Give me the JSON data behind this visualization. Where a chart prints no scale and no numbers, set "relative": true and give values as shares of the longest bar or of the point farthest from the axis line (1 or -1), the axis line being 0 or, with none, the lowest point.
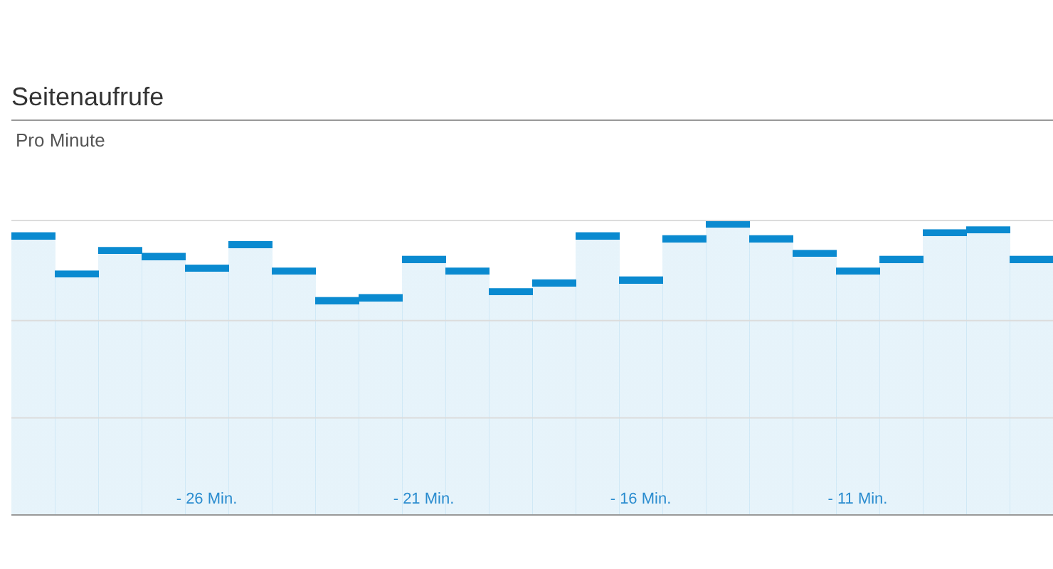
{
  "chart_data": {
    "type": "bar",
    "title": "Seitenaufrufe",
    "subtitle": "Pro Minute",
    "relative": true,
    "ref_lines": [
      {
        "axis": "y",
        "value": 0.33,
        "color": "#dcdcdc"
      },
      {
        "axis": "y",
        "value": 0.66,
        "color": "#dcdcdc"
      },
      {
        "axis": "y",
        "value": 1,
        "color": "#dcdcdc"
      }
    ],
    "color": "#0a8ad0",
    "categories": [
      null,
      null,
      null,
      null,
      "- 26 Min.",
      null,
      null,
      null,
      null,
      "- 21 Min.",
      null,
      null,
      null,
      null,
      "- 16 Min.",
      null,
      null,
      null,
      null,
      "- 11 Min.",
      null,
      null,
      null,
      null
    ],
    "values": [
      0.96,
      0.83,
      0.91,
      0.89,
      0.85,
      0.93,
      0.84,
      0.74,
      0.75,
      0.88,
      0.84,
      0.77,
      0.8,
      0.96,
      0.81,
      0.95,
      1,
      0.95,
      0.9,
      0.84,
      0.88,
      0.97,
      0.98,
      0.88
    ]
  }
}
